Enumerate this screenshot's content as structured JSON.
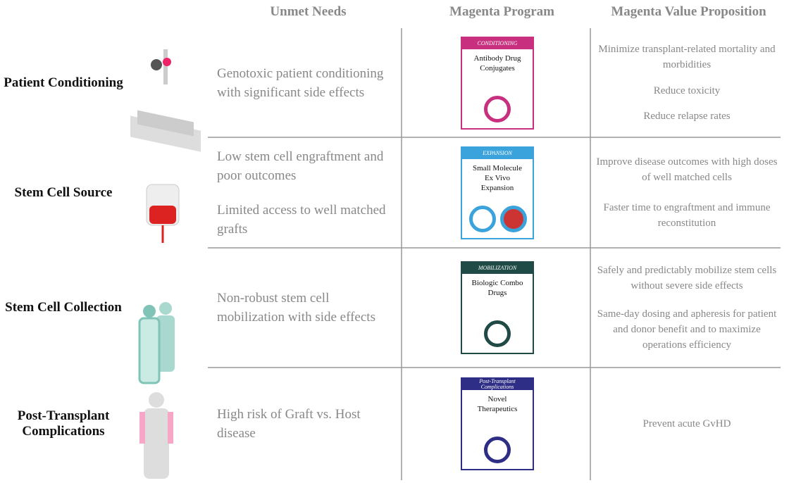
{
  "header": {
    "columns": [
      "Unmet Needs",
      "Magenta Program",
      "Magenta Value Proposition"
    ]
  },
  "rows": [
    {
      "label": "Patient Conditioning",
      "unmet_needs": [
        "Genotoxic patient conditioning with significant side effects"
      ],
      "program": {
        "tag": "CONDITIONING",
        "name": "Antibody Drug Conjugates"
      },
      "value_propositions": [
        "Minimize transplant-related mortality and morbidities",
        "Reduce toxicity",
        "Reduce relapse rates"
      ]
    },
    {
      "label": "Stem Cell Source",
      "unmet_needs": [
        "Low stem cell engraftment and poor outcomes",
        "Limited access to well matched grafts"
      ],
      "program": {
        "tag": "EXPANSION",
        "name": "Small Molecule Ex Vivo Expansion"
      },
      "value_propositions": [
        "Improve disease outcomes with high doses of well matched cells",
        "Faster time to engraftment and immune reconstitution"
      ]
    },
    {
      "label": "Stem Cell Collection",
      "unmet_needs": [
        "Non-robust stem cell mobilization with side effects"
      ],
      "program": {
        "tag": "MOBILIZATION",
        "name": "Biologic Combo Drugs"
      },
      "value_propositions": [
        "Safely and predictably mobilize stem cells without severe side effects",
        "Same-day dosing and apheresis for patient and donor benefit and to maximize operations efficiency"
      ]
    },
    {
      "label": "Post-Transplant Complications",
      "unmet_needs": [
        "High risk of Graft vs. Host disease"
      ],
      "program": {
        "tag": "Post-Transplant Complications",
        "name": "Novel Therapeutics"
      },
      "value_propositions": [
        "Prevent acute GvHD"
      ]
    }
  ]
}
